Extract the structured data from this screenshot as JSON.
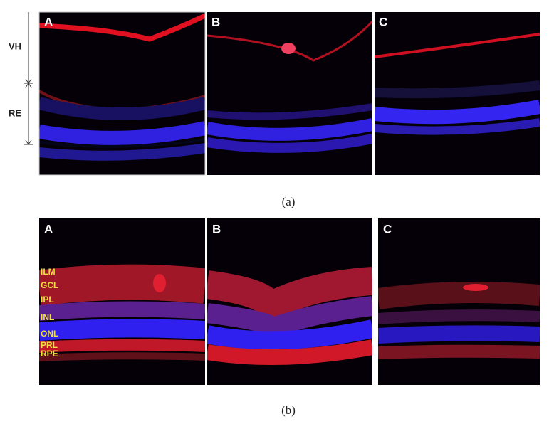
{
  "figure_a": {
    "panels": [
      "A",
      "B",
      "C"
    ],
    "side_labels": [
      "VH",
      "RE"
    ],
    "caption": "(a)"
  },
  "figure_b": {
    "panels": [
      "A",
      "B",
      "C"
    ],
    "layer_labels": [
      "ILM",
      "GCL",
      "IPL",
      "INL",
      "ONL",
      "PRL",
      "RPE"
    ],
    "caption": "(b)"
  }
}
